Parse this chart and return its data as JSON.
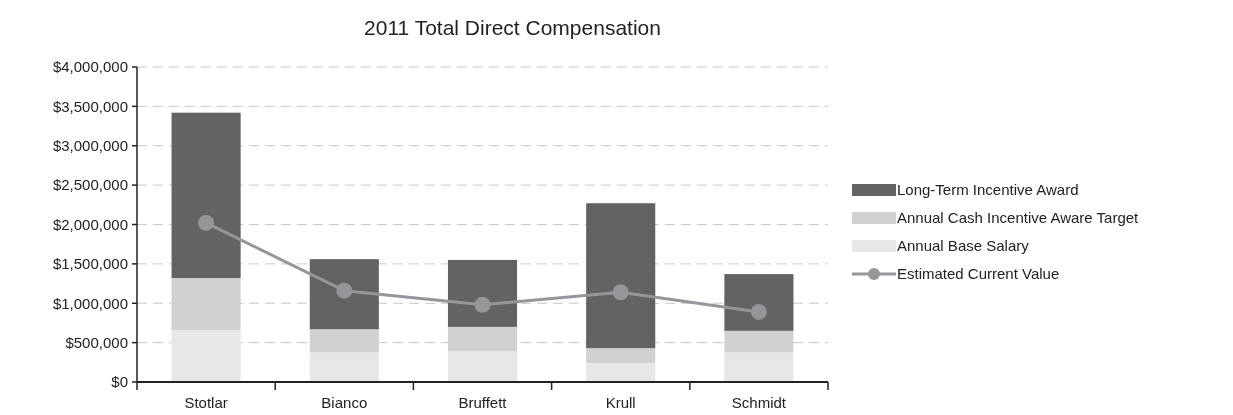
{
  "chart_data": {
    "type": "bar",
    "title": "2011 Total Direct Compensation",
    "categories": [
      "Stotlar",
      "Bianco",
      "Bruffett",
      "Krull",
      "Schmidt"
    ],
    "stacked": true,
    "series": [
      {
        "name": "Annual Base Salary",
        "color": "#e6e7e8",
        "values": [
          660000,
          380000,
          390000,
          240000,
          380000
        ]
      },
      {
        "name": "Annual Cash Incentive Aware Target",
        "color": "#d0d1d2",
        "values": [
          660000,
          290000,
          310000,
          190000,
          270000
        ]
      },
      {
        "name": "Long-Term Incentive Award",
        "color": "#636365",
        "values": [
          2100000,
          890000,
          850000,
          1840000,
          720000
        ]
      },
      {
        "name": "Estimated Current Value",
        "type": "line",
        "color": "#959699",
        "values": [
          2020000,
          1160000,
          980000,
          1140000,
          890000
        ],
        "marker": "circle"
      }
    ],
    "ylim": [
      0,
      4000000
    ],
    "yticks": [
      {
        "value": 0,
        "label": "$0"
      },
      {
        "value": 500000,
        "label": "$500,000"
      },
      {
        "value": 1000000,
        "label": "$1,000,000"
      },
      {
        "value": 1500000,
        "label": "$1,500,000"
      },
      {
        "value": 2000000,
        "label": "$2,000,000"
      },
      {
        "value": 2500000,
        "label": "$2,500,000"
      },
      {
        "value": 3000000,
        "label": "$3,000,000"
      },
      {
        "value": 3500000,
        "label": "$3,500,000"
      },
      {
        "value": 4000000,
        "label": "$4,000,000"
      }
    ],
    "grid": "y",
    "legend": "right"
  }
}
